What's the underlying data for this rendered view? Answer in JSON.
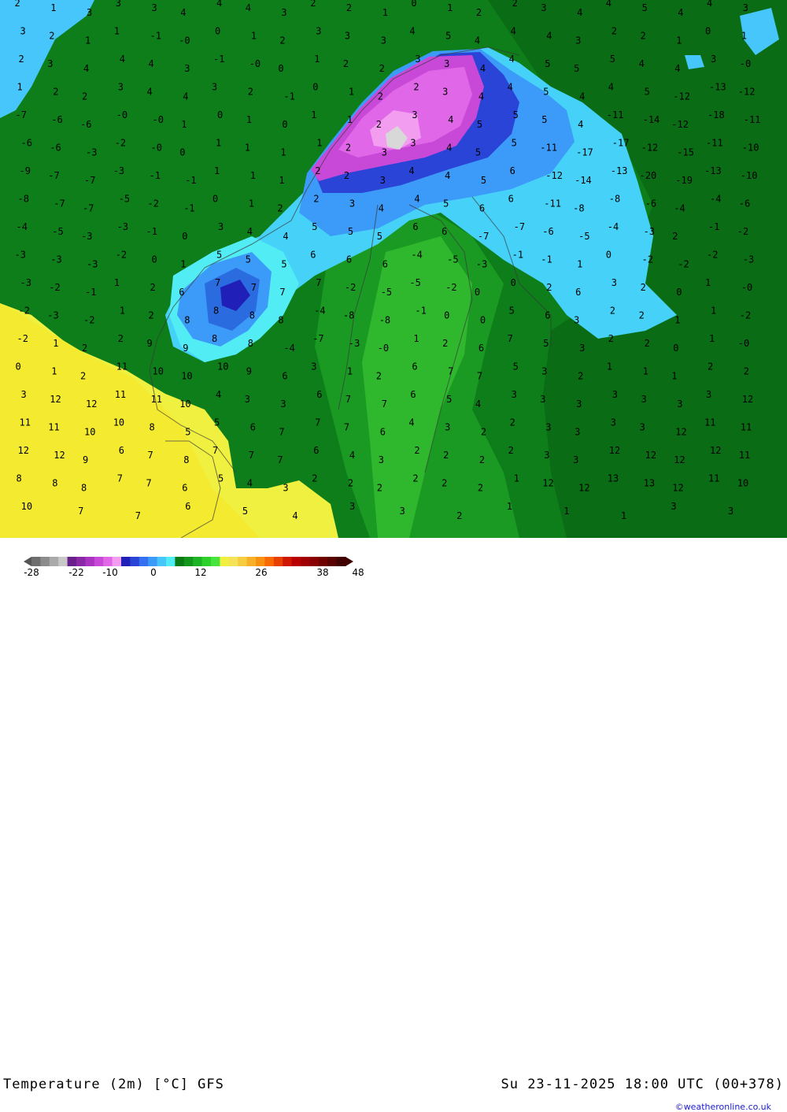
{
  "map": {
    "title": "Temperature (2m) [°C] GFS",
    "valid_time": "Su 23-11-2025 18:00 UTC (00+378)",
    "credit": "©weatheronline.co.uk",
    "numbers": [
      "2",
      "1",
      "3",
      "3",
      "3",
      "4",
      "4",
      "4",
      "3",
      "2",
      "2",
      "1",
      "0",
      "1",
      "2",
      "2",
      "3",
      "4",
      "4",
      "5",
      "4",
      "4",
      "3",
      "3",
      "2",
      "1",
      "1",
      "-1",
      "-0",
      "0",
      "1",
      "2",
      "3",
      "3",
      "3",
      "4",
      "5",
      "4",
      "4",
      "4",
      "3",
      "2",
      "2",
      "1",
      "0",
      "1",
      "2",
      "3",
      "4",
      "4",
      "4",
      "3",
      "-1",
      "-0",
      "0",
      "1",
      "2",
      "2",
      "3",
      "3",
      "4",
      "4",
      "5",
      "5",
      "5",
      "4",
      "4",
      "3",
      "-0",
      "1",
      "2",
      "2",
      "3",
      "4",
      "4",
      "3",
      "2",
      "-1",
      "0",
      "1",
      "2",
      "2",
      "3",
      "4",
      "4",
      "5",
      "4",
      "4",
      "5",
      "-12",
      "-13",
      "-12",
      "-7",
      "-6",
      "-6",
      "-0",
      "-0",
      "1",
      "0",
      "1",
      "0",
      "1",
      "1",
      "2",
      "3",
      "4",
      "5",
      "5",
      "5",
      "4",
      "-11",
      "-14",
      "-12",
      "-18",
      "-11",
      "-6",
      "-6",
      "-3",
      "-2",
      "-0",
      "0",
      "1",
      "1",
      "1",
      "1",
      "2",
      "3",
      "3",
      "4",
      "5",
      "5",
      "-11",
      "-17",
      "-17",
      "-12",
      "-15",
      "-11",
      "-10",
      "-9",
      "-7",
      "-7",
      "-3",
      "-1",
      "-1",
      "1",
      "1",
      "1",
      "2",
      "2",
      "3",
      "4",
      "4",
      "5",
      "6",
      "-12",
      "-14",
      "-13",
      "-20",
      "-19",
      "-13",
      "-10",
      "-8",
      "-7",
      "-7",
      "-5",
      "-2",
      "-1",
      "0",
      "1",
      "2",
      "2",
      "3",
      "4",
      "4",
      "5",
      "6",
      "6",
      "-11",
      "-8",
      "-8",
      "-6",
      "-4",
      "-4",
      "-6",
      "-4",
      "-5",
      "-3",
      "-3",
      "-1",
      "0",
      "3",
      "4",
      "4",
      "5",
      "5",
      "5",
      "6",
      "6",
      "-7",
      "-7",
      "-6",
      "-5",
      "-4",
      "-3",
      "2",
      "-1",
      "-2",
      "-3",
      "-3",
      "-3",
      "-2",
      "0",
      "1",
      "5",
      "5",
      "5",
      "6",
      "6",
      "6",
      "-4",
      "-5",
      "-3",
      "-1",
      "-1",
      "1",
      "0",
      "-2",
      "-2",
      "-2",
      "-3",
      "-3",
      "-2",
      "-1",
      "1",
      "2",
      "6",
      "7",
      "7",
      "7",
      "7",
      "-2",
      "-5",
      "-5",
      "-2",
      "0",
      "0",
      "2",
      "6",
      "3",
      "2",
      "0",
      "1",
      "-0",
      "-2",
      "-3",
      "-2",
      "1",
      "2",
      "8",
      "8",
      "8",
      "8",
      "-4",
      "-8",
      "-8",
      "-1",
      "0",
      "0",
      "5",
      "6",
      "3",
      "2",
      "2",
      "1",
      "1",
      "-2",
      "-2",
      "1",
      "2",
      "2",
      "9",
      "9",
      "8",
      "8",
      "-4",
      "-7",
      "-3",
      "-0",
      "1",
      "2",
      "6",
      "7",
      "5",
      "3",
      "2",
      "2",
      "0",
      "1",
      "-0",
      "0",
      "1",
      "2",
      "11",
      "10",
      "10",
      "10",
      "9",
      "6",
      "3",
      "1",
      "2",
      "6",
      "7",
      "7",
      "5",
      "3",
      "2",
      "1",
      "1",
      "1",
      "2",
      "2",
      "3",
      "12",
      "12",
      "11",
      "11",
      "10",
      "4",
      "3",
      "3",
      "6",
      "7",
      "7",
      "6",
      "5",
      "4",
      "3",
      "3",
      "3",
      "3",
      "3",
      "3",
      "3",
      "12",
      "11",
      "11",
      "10",
      "10",
      "8",
      "5",
      "5",
      "6",
      "7",
      "7",
      "7",
      "6",
      "4",
      "3",
      "2",
      "2",
      "3",
      "3",
      "3",
      "3",
      "12",
      "11",
      "11",
      "12",
      "12",
      "9",
      "6",
      "7",
      "8",
      "7",
      "7",
      "7",
      "6",
      "4",
      "3",
      "2",
      "2",
      "2",
      "2",
      "3",
      "3",
      "12",
      "12",
      "12",
      "12",
      "11",
      "8",
      "8",
      "8",
      "7",
      "7",
      "6",
      "5",
      "4",
      "3",
      "2",
      "2",
      "2",
      "2",
      "2",
      "2",
      "1",
      "12",
      "12",
      "13",
      "13",
      "12",
      "11",
      "10",
      "10",
      "7",
      "7",
      "6",
      "5",
      "4",
      "3",
      "3",
      "2",
      "1",
      "1",
      "1",
      "3",
      "3"
    ]
  },
  "legend": {
    "colors": [
      "#6e6e6e",
      "#8c8c8c",
      "#aaaaaa",
      "#c8c8c8",
      "#6b1f8c",
      "#8a28a6",
      "#aa33c2",
      "#c848d8",
      "#e068e8",
      "#f29df0",
      "#2020b8",
      "#2a44d8",
      "#3470f0",
      "#3c9af8",
      "#46c6fa",
      "#52ecf4",
      "#0a7a14",
      "#12961c",
      "#1cb424",
      "#2ed02c",
      "#46e43c",
      "#f0f040",
      "#f4e258",
      "#f6cc40",
      "#f8b028",
      "#f89010",
      "#f86a00",
      "#e84000",
      "#d01800",
      "#b80000",
      "#a00000",
      "#8a0000",
      "#700000",
      "#580000",
      "#400000"
    ],
    "ticks": [
      "-28",
      "-22",
      "-10",
      "0",
      "12",
      "26",
      "38",
      "48"
    ]
  }
}
